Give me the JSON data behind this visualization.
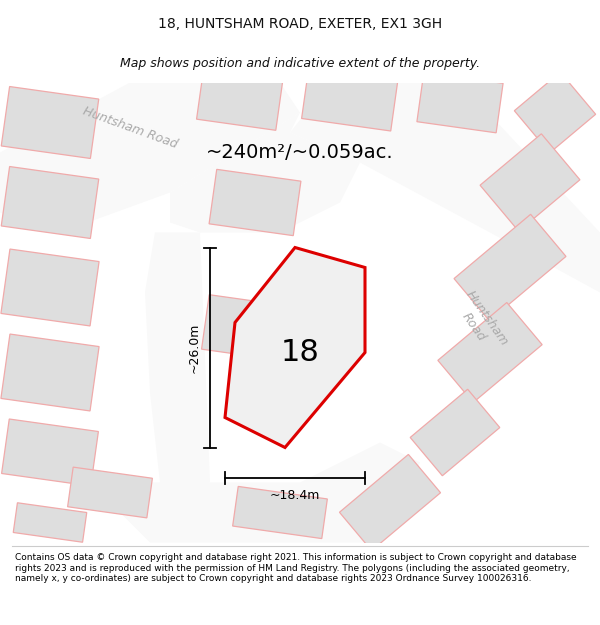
{
  "title": "18, HUNTSHAM ROAD, EXETER, EX1 3GH",
  "subtitle": "Map shows position and indicative extent of the property.",
  "area_label": "~240m²/~0.059ac.",
  "property_number": "18",
  "dim_horizontal": "~18.4m",
  "dim_vertical": "~26.0m",
  "footer": "Contains OS data © Crown copyright and database right 2021. This information is subject to Crown copyright and database rights 2023 and is reproduced with the permission of HM Land Registry. The polygons (including the associated geometry, namely x, y co-ordinates) are subject to Crown copyright and database rights 2023 Ordnance Survey 100026316.",
  "map_bg": "#ebebeb",
  "road_fill": "#f9f9f9",
  "building_fill": "#dedede",
  "building_edge": "#f0aaaa",
  "plot_edge_main": "#dd0000",
  "plot_fill": "#f0f0f0",
  "road_label_color": "#aaaaaa",
  "text_color": "#111111",
  "title_fontsize": 10,
  "subtitle_fontsize": 9,
  "area_fontsize": 14,
  "prop_fontsize": 22,
  "dim_fontsize": 9,
  "road_label_fontsize": 9,
  "footer_fontsize": 6.5
}
